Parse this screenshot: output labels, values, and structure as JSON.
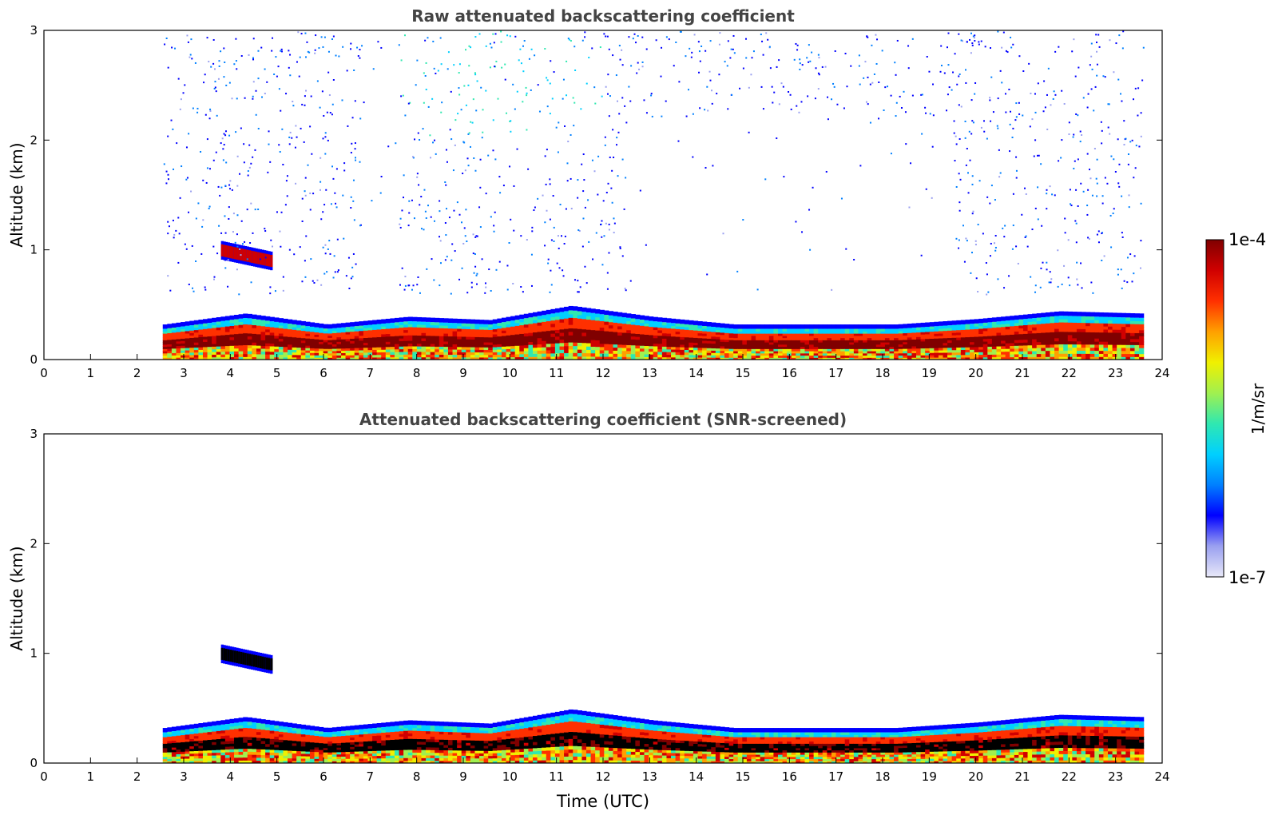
{
  "chart_data": [
    {
      "type": "heatmap",
      "title": "Raw attenuated backscattering coefficient",
      "xlabel": "",
      "ylabel": "Altitude (km)",
      "xlim": [
        0,
        24
      ],
      "ylim": [
        0,
        3
      ],
      "xticks": [
        "0",
        "1",
        "2",
        "3",
        "4",
        "5",
        "6",
        "7",
        "8",
        "9",
        "10",
        "11",
        "12",
        "13",
        "14",
        "15",
        "16",
        "17",
        "18",
        "19",
        "20",
        "21",
        "22",
        "23",
        "24"
      ],
      "yticks": [
        "0",
        "1",
        "2",
        "3"
      ],
      "data_time_range": [
        2.55,
        23.6
      ],
      "features": [
        {
          "name": "boundary-layer-aerosol",
          "time": [
            2.55,
            23.6
          ],
          "alt_top": [
            0.28,
            0.38,
            0.28,
            0.35,
            0.32,
            0.45,
            0.35,
            0.28,
            0.28,
            0.28,
            0.33,
            0.4,
            0.38
          ]
        },
        {
          "name": "elevated-layer-4km",
          "time": [
            3.8,
            4.9
          ],
          "alt": [
            0.9,
            1.05
          ]
        },
        {
          "name": "noise-upper-levels",
          "time": [
            2.55,
            23.6
          ],
          "alt": [
            0.6,
            3.0
          ]
        }
      ]
    },
    {
      "type": "heatmap",
      "title": "Attenuated backscattering coefficient (SNR-screened)",
      "xlabel": "Time (UTC)",
      "ylabel": "Altitude (km)",
      "xlim": [
        0,
        24
      ],
      "ylim": [
        0,
        3
      ],
      "xticks": [
        "0",
        "1",
        "2",
        "3",
        "4",
        "5",
        "6",
        "7",
        "8",
        "9",
        "10",
        "11",
        "12",
        "13",
        "14",
        "15",
        "16",
        "17",
        "18",
        "19",
        "20",
        "21",
        "22",
        "23",
        "24"
      ],
      "yticks": [
        "0",
        "1",
        "2",
        "3"
      ],
      "data_time_range": [
        2.55,
        23.6
      ],
      "features": [
        {
          "name": "boundary-layer-aerosol",
          "time": [
            2.55,
            23.6
          ],
          "alt_top": [
            0.28,
            0.38,
            0.28,
            0.35,
            0.32,
            0.45,
            0.35,
            0.28,
            0.28,
            0.28,
            0.33,
            0.4,
            0.38
          ]
        },
        {
          "name": "elevated-layer-4km",
          "time": [
            3.8,
            4.9
          ],
          "alt": [
            0.9,
            1.05
          ]
        }
      ]
    }
  ],
  "colorbar": {
    "label": "1/m/sr",
    "max_label": "1e-4",
    "min_label": "1e-7",
    "range": [
      1e-07,
      0.0001
    ],
    "colors": [
      "#e8e8f8",
      "#9aa0f0",
      "#0000ff",
      "#0080ff",
      "#00d0ff",
      "#30e8b0",
      "#a0f050",
      "#f0f000",
      "#ffa000",
      "#ff3000",
      "#d00000",
      "#800000"
    ]
  }
}
